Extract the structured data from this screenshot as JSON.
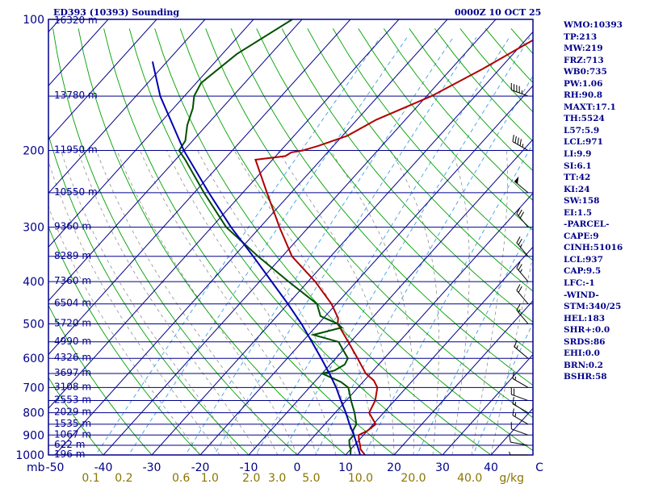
{
  "colors": {
    "axis": "#00008b",
    "temperature": "#b00000",
    "dewpoint": "#005000",
    "parcel": "#0000b0",
    "dry_adiabat": "#00a000",
    "moist_adiabat": "#909090",
    "mixing_ratio": "#40a0e0",
    "mixing_label": "#8b7500"
  },
  "chart_data": {
    "type": "line",
    "diagram": "skew-T log-P",
    "title_left": "ED393 (10393) Sounding",
    "title_right": "0000Z 10 OCT 25",
    "x_unit_label": "C",
    "y_unit_label": "mb",
    "mixing_unit_label": "g/kg",
    "pressure_ticks": [
      "100",
      "200",
      "300",
      "400",
      "500",
      "600",
      "700",
      "800",
      "900",
      "1000"
    ],
    "pressure_tick_values": [
      100,
      200,
      300,
      400,
      500,
      600,
      700,
      800,
      900,
      1000
    ],
    "temperature_ticks": [
      "-50",
      "-40",
      "-30",
      "-20",
      "-10",
      "0",
      "10",
      "20",
      "30",
      "40"
    ],
    "temperature_tick_values": [
      -50,
      -40,
      -30,
      -20,
      -10,
      0,
      10,
      20,
      30,
      40
    ],
    "mixing_ratio_labels": [
      "0.1",
      "0.2",
      "0.6",
      "1.0",
      "2.0",
      "3.0",
      "5.0",
      "10.0",
      "20.0",
      "40.0"
    ],
    "mixing_ratio_values": [
      0.1,
      0.2,
      0.6,
      1.0,
      2.0,
      3.0,
      5.0,
      10.0,
      20.0,
      40.0
    ],
    "height_labels": [
      "16320 m",
      "13780 m",
      "11950 m",
      "10550 m",
      "9360 m",
      "8289 m",
      "7360 m",
      "6504 m",
      "5720 m",
      "4990 m",
      "4326 m",
      "3697 m",
      "3108 m",
      "2553 m",
      "2029 m",
      "1535 m",
      "1067 m",
      "622 m",
      "196 m"
    ],
    "height_pressures": [
      100,
      150,
      200,
      250,
      300,
      350,
      400,
      450,
      500,
      550,
      600,
      650,
      700,
      750,
      800,
      850,
      900,
      950,
      1000
    ],
    "series": [
      {
        "name": "Temperature",
        "p": [
          1000,
          970,
          950,
          925,
          900,
          880,
          850,
          800,
          750,
          700,
          675,
          650,
          600,
          550,
          500,
          485,
          450,
          400,
          350,
          300,
          250,
          210,
          206,
          202,
          200,
          195,
          185,
          170,
          150,
          130,
          110,
          100
        ],
        "t": [
          14.0,
          12.0,
          11.2,
          10.0,
          9.0,
          10.0,
          10.5,
          7.0,
          6.0,
          4.0,
          2.0,
          -1.0,
          -5.5,
          -10.5,
          -16.0,
          -17.0,
          -21.0,
          -28.5,
          -38.0,
          -46.0,
          -55.0,
          -63.5,
          -58.0,
          -57.5,
          -55.5,
          -53.0,
          -49.0,
          -46.0,
          -39.0,
          -33.5,
          -28.0,
          -24.0
        ]
      },
      {
        "name": "Dewpoint",
        "p": [
          1000,
          970,
          950,
          925,
          900,
          880,
          850,
          800,
          750,
          700,
          680,
          650,
          640,
          620,
          600,
          550,
          530,
          510,
          500,
          480,
          450,
          400,
          350,
          300,
          250,
          210,
          200,
          190,
          175,
          160,
          150,
          140,
          120,
          100
        ],
        "t": [
          11.0,
          10.0,
          9.0,
          8.0,
          8.0,
          7.0,
          6.5,
          4.0,
          1.0,
          -2.0,
          -4.5,
          -10.0,
          -8.0,
          -7.0,
          -7.5,
          -12.5,
          -19.0,
          -14.5,
          -16.0,
          -21.0,
          -24.0,
          -34.0,
          -45.0,
          -57.0,
          -68.0,
          -78.0,
          -81.0,
          -81.5,
          -84.0,
          -86.0,
          -88.0,
          -89.0,
          -87.0,
          -82.0
        ]
      },
      {
        "name": "Parcel",
        "p": [
          1000,
          950,
          900,
          850,
          800,
          750,
          700,
          650,
          600,
          550,
          500,
          450,
          400,
          350,
          300,
          250,
          200,
          150,
          125
        ],
        "t": [
          13.0,
          10.6,
          8.0,
          5.1,
          2.2,
          -1.1,
          -4.5,
          -8.5,
          -13.0,
          -18.0,
          -23.5,
          -30.0,
          -37.5,
          -46.0,
          -56.0,
          -67.0,
          -80.0,
          -95.0,
          -103.0
        ]
      }
    ],
    "wind": {
      "p": [
        1000,
        950,
        900,
        850,
        800,
        750,
        700,
        600,
        500,
        450,
        400,
        350,
        300,
        250,
        200,
        150,
        100
      ],
      "speed_kt": [
        5,
        10,
        10,
        15,
        15,
        20,
        15,
        15,
        15,
        20,
        25,
        25,
        30,
        50,
        45,
        45,
        10
      ],
      "dir_deg": [
        270,
        280,
        290,
        300,
        300,
        290,
        300,
        310,
        320,
        320,
        320,
        320,
        320,
        310,
        300,
        290,
        300
      ]
    }
  },
  "stats": [
    "WMO:10393",
    "TP:213",
    "MW:219",
    "FRZ:713",
    "WB0:735",
    "PW:1.06",
    "RH:90.8",
    "MAXT:17.1",
    "TH:5524",
    "L57:5.9",
    "LCL:971",
    "LI:9.9",
    "SI:6.1",
    "TT:42",
    "KI:24",
    "SW:158",
    "EI:1.5",
    "-PARCEL-",
    "CAPE:9",
    "CINH:51016",
    "LCL:937",
    "CAP:9.5",
    "LFC:-1",
    "-WIND-",
    "STM:340/25",
    "HEL:183",
    "SHR+:0.0",
    "SRDS:86",
    "EHI:0.0",
    "BRN:0.2",
    "BSHR:58"
  ]
}
